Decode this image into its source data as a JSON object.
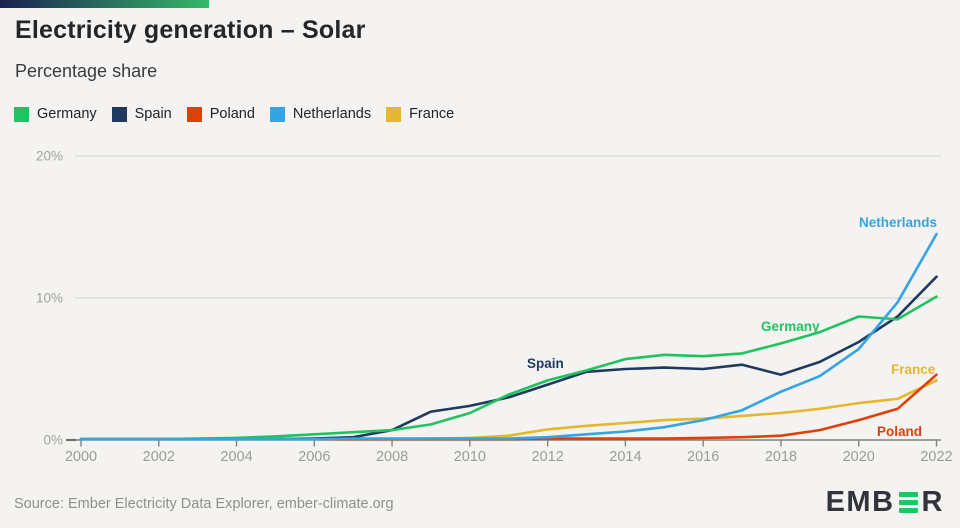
{
  "header": {
    "title": "Electricity generation – Solar",
    "subtitle": "Percentage share"
  },
  "legend": {
    "items": [
      {
        "label": "Germany",
        "color": "#1fc35f"
      },
      {
        "label": "Spain",
        "color": "#1e3a5f"
      },
      {
        "label": "Poland",
        "color": "#e04008"
      },
      {
        "label": "Netherlands",
        "color": "#33a4e4"
      },
      {
        "label": "France",
        "color": "#e4b72f"
      }
    ]
  },
  "theme": {
    "gradient_left": "#1b2150",
    "gradient_right": "#36b96a",
    "logo_green": "#23c465"
  },
  "chart_data": {
    "type": "line",
    "title": "Electricity generation – Solar",
    "ylabel": "Percentage share",
    "ylim": [
      0,
      20
    ],
    "grid": true,
    "legend_position": "top",
    "x": [
      2000,
      2001,
      2002,
      2003,
      2004,
      2005,
      2006,
      2007,
      2008,
      2009,
      2010,
      2011,
      2012,
      2013,
      2014,
      2015,
      2016,
      2017,
      2018,
      2019,
      2020,
      2021,
      2022
    ],
    "series": [
      {
        "name": "Germany",
        "color": "#1fc35f",
        "values": [
          0.0,
          0.03,
          0.05,
          0.1,
          0.15,
          0.25,
          0.4,
          0.55,
          0.7,
          1.1,
          1.9,
          3.2,
          4.2,
          4.9,
          5.7,
          6.0,
          5.9,
          6.1,
          6.8,
          7.6,
          8.7,
          8.5,
          10.1
        ]
      },
      {
        "name": "Spain",
        "color": "#1e3a5f",
        "values": [
          0.0,
          0.0,
          0.0,
          0.0,
          0.05,
          0.05,
          0.1,
          0.2,
          0.7,
          2.0,
          2.4,
          3.0,
          3.9,
          4.8,
          5.0,
          5.1,
          5.0,
          5.3,
          4.6,
          5.5,
          6.9,
          8.7,
          11.5
        ]
      },
      {
        "name": "Poland",
        "color": "#e04008",
        "values": [
          0.0,
          0.0,
          0.0,
          0.0,
          0.0,
          0.0,
          0.0,
          0.0,
          0.0,
          0.0,
          0.0,
          0.05,
          0.1,
          0.1,
          0.1,
          0.1,
          0.15,
          0.2,
          0.3,
          0.7,
          1.4,
          2.2,
          4.6
        ]
      },
      {
        "name": "Netherlands",
        "color": "#33a4e4",
        "values": [
          0.0,
          0.0,
          0.0,
          0.05,
          0.05,
          0.05,
          0.05,
          0.1,
          0.1,
          0.1,
          0.1,
          0.1,
          0.2,
          0.4,
          0.6,
          0.9,
          1.4,
          2.1,
          3.4,
          4.5,
          6.4,
          9.7,
          14.5
        ]
      },
      {
        "name": "France",
        "color": "#e4b72f",
        "values": [
          0.0,
          0.0,
          0.0,
          0.0,
          0.0,
          0.0,
          0.0,
          0.0,
          0.0,
          0.1,
          0.15,
          0.3,
          0.75,
          1.0,
          1.2,
          1.4,
          1.5,
          1.7,
          1.9,
          2.2,
          2.6,
          2.9,
          4.2
        ]
      }
    ],
    "y_ticks": [
      {
        "value": 0,
        "label": "0%"
      },
      {
        "value": 10,
        "label": "10%"
      },
      {
        "value": 20,
        "label": "20%"
      }
    ],
    "x_tick_labels": [
      "2000",
      "2002",
      "2004",
      "2006",
      "2008",
      "2010",
      "2012",
      "2014",
      "2016",
      "2018",
      "2020",
      "2022"
    ],
    "draw_order": [
      "France",
      "Poland",
      "Spain",
      "Germany",
      "Netherlands"
    ],
    "inline_labels": [
      {
        "series": "Spain",
        "x": 527,
        "y": 228
      },
      {
        "series": "Germany",
        "x": 761,
        "y": 191
      },
      {
        "series": "Netherlands",
        "x": 859,
        "y": 87
      },
      {
        "series": "France",
        "x": 891,
        "y": 234
      },
      {
        "series": "Poland",
        "x": 877,
        "y": 296
      }
    ]
  },
  "footer": {
    "source": "Source: Ember Electricity Data Explorer, ember-climate.org",
    "logo": {
      "prefix": "EMB",
      "suffix": "R"
    }
  }
}
